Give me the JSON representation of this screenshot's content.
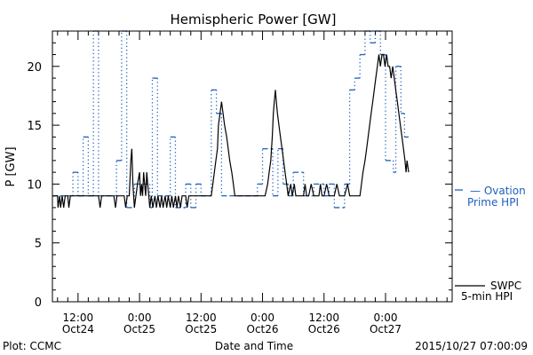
{
  "chart_data": {
    "type": "line",
    "title": "Hemispheric Power [GW]",
    "xlabel": "Date and Time",
    "ylabel": "P [GW]",
    "x_unit": "hours after 2015-10-24 00:00 UT",
    "xlim": [
      7.0,
      85.0
    ],
    "ylim": [
      0,
      23
    ],
    "yticks": [
      0,
      5,
      10,
      15,
      20
    ],
    "xticks": [
      {
        "t": 12,
        "time": "12:00",
        "date": "Oct24"
      },
      {
        "t": 24,
        "time": "0:00",
        "date": "Oct25"
      },
      {
        "t": 36,
        "time": "12:00",
        "date": "Oct25"
      },
      {
        "t": 48,
        "time": "0:00",
        "date": "Oct26"
      },
      {
        "t": 60,
        "time": "12:00",
        "date": "Oct26"
      },
      {
        "t": 72,
        "time": "0:00",
        "date": "Oct27"
      }
    ],
    "grid": false,
    "legend_position": "right",
    "footer_left": "Plot: CCMC",
    "footer_right": "2015/10/27 07:00:09",
    "series": [
      {
        "name": "SWPC 5-min HPI",
        "legend_lines": [
          "SWPC",
          "5-min HPI"
        ],
        "color": "#000000",
        "style": "solid-step",
        "points": [
          [
            7.0,
            9
          ],
          [
            8.0,
            9
          ],
          [
            8.1,
            8
          ],
          [
            8.4,
            9
          ],
          [
            8.6,
            8
          ],
          [
            8.9,
            9
          ],
          [
            9.2,
            8
          ],
          [
            9.5,
            9
          ],
          [
            10.0,
            9
          ],
          [
            10.2,
            8
          ],
          [
            10.5,
            9
          ],
          [
            16.0,
            9
          ],
          [
            16.3,
            8
          ],
          [
            16.6,
            9
          ],
          [
            19.0,
            9
          ],
          [
            19.3,
            8
          ],
          [
            19.6,
            9
          ],
          [
            21.0,
            9
          ],
          [
            21.3,
            8
          ],
          [
            21.6,
            9
          ],
          [
            22.0,
            9
          ],
          [
            22.3,
            12
          ],
          [
            22.5,
            13
          ],
          [
            22.7,
            10
          ],
          [
            23.0,
            8
          ],
          [
            23.3,
            9
          ],
          [
            23.6,
            10
          ],
          [
            24.0,
            11
          ],
          [
            24.2,
            9
          ],
          [
            24.4,
            10
          ],
          [
            24.6,
            9
          ],
          [
            24.8,
            11
          ],
          [
            25.0,
            10
          ],
          [
            25.2,
            9
          ],
          [
            25.4,
            11
          ],
          [
            25.6,
            10
          ],
          [
            25.8,
            9
          ],
          [
            26.0,
            8
          ],
          [
            26.3,
            9
          ],
          [
            26.6,
            8
          ],
          [
            27.0,
            9
          ],
          [
            27.3,
            8
          ],
          [
            27.6,
            9
          ],
          [
            28.0,
            8
          ],
          [
            28.3,
            9
          ],
          [
            28.6,
            8
          ],
          [
            29.0,
            9
          ],
          [
            29.3,
            8
          ],
          [
            29.6,
            9
          ],
          [
            30.0,
            8
          ],
          [
            30.3,
            9
          ],
          [
            30.6,
            8
          ],
          [
            31.0,
            9
          ],
          [
            31.3,
            8
          ],
          [
            31.6,
            9
          ],
          [
            32.0,
            8
          ],
          [
            32.3,
            9
          ],
          [
            33.0,
            9
          ],
          [
            33.3,
            8
          ],
          [
            33.6,
            9
          ],
          [
            35.0,
            9
          ],
          [
            36.5,
            9
          ],
          [
            38.0,
            9
          ],
          [
            38.3,
            10
          ],
          [
            38.6,
            11
          ],
          [
            38.9,
            12
          ],
          [
            39.2,
            13
          ],
          [
            39.4,
            15
          ],
          [
            39.7,
            16
          ],
          [
            40.0,
            17
          ],
          [
            40.3,
            16
          ],
          [
            40.6,
            15
          ],
          [
            41.0,
            14
          ],
          [
            41.3,
            13
          ],
          [
            41.6,
            12
          ],
          [
            42.0,
            11
          ],
          [
            42.3,
            10
          ],
          [
            42.6,
            9
          ],
          [
            48.5,
            9
          ],
          [
            49.0,
            10
          ],
          [
            49.3,
            11
          ],
          [
            49.6,
            12
          ],
          [
            49.9,
            14
          ],
          [
            50.1,
            16
          ],
          [
            50.3,
            17
          ],
          [
            50.5,
            18
          ],
          [
            50.7,
            17
          ],
          [
            50.9,
            16
          ],
          [
            51.2,
            15
          ],
          [
            51.5,
            14
          ],
          [
            51.8,
            13
          ],
          [
            52.1,
            12
          ],
          [
            52.4,
            11
          ],
          [
            52.7,
            10
          ],
          [
            53.0,
            9
          ],
          [
            53.5,
            10
          ],
          [
            53.8,
            9
          ],
          [
            54.2,
            10
          ],
          [
            54.5,
            9
          ],
          [
            55.0,
            9
          ],
          [
            56.0,
            9
          ],
          [
            56.3,
            10
          ],
          [
            56.6,
            9
          ],
          [
            57.0,
            9
          ],
          [
            57.5,
            10
          ],
          [
            58.0,
            9
          ],
          [
            59.0,
            9
          ],
          [
            59.3,
            10
          ],
          [
            59.6,
            9
          ],
          [
            60.0,
            9
          ],
          [
            60.5,
            10
          ],
          [
            61.0,
            9
          ],
          [
            62.0,
            9
          ],
          [
            62.5,
            10
          ],
          [
            63.0,
            9
          ],
          [
            64.0,
            9
          ],
          [
            64.6,
            10
          ],
          [
            65.0,
            9
          ],
          [
            67.0,
            9
          ],
          [
            67.3,
            10
          ],
          [
            67.6,
            11
          ],
          [
            68.0,
            12
          ],
          [
            68.3,
            13
          ],
          [
            68.6,
            14
          ],
          [
            68.9,
            15
          ],
          [
            69.2,
            16
          ],
          [
            69.5,
            17
          ],
          [
            69.8,
            18
          ],
          [
            70.1,
            19
          ],
          [
            70.4,
            20
          ],
          [
            70.7,
            21
          ],
          [
            71.0,
            20
          ],
          [
            71.3,
            21
          ],
          [
            71.6,
            21
          ],
          [
            71.9,
            20
          ],
          [
            72.2,
            21
          ],
          [
            72.5,
            20
          ],
          [
            72.8,
            20
          ],
          [
            73.1,
            19
          ],
          [
            73.4,
            20
          ],
          [
            73.7,
            19
          ],
          [
            74.0,
            18
          ],
          [
            74.3,
            17
          ],
          [
            74.6,
            16
          ],
          [
            74.9,
            15
          ],
          [
            75.2,
            14
          ],
          [
            75.5,
            13
          ],
          [
            75.8,
            12
          ],
          [
            76.0,
            11
          ],
          [
            76.2,
            12
          ],
          [
            76.5,
            11
          ]
        ]
      },
      {
        "name": "Ovation Prime HPI",
        "legend_lines": [
          "— Ovation",
          "Prime HPI"
        ],
        "color": "#1f5fbf",
        "style": "dotted-dashed-step",
        "points": [
          [
            7.0,
            9
          ],
          [
            11.0,
            9
          ],
          [
            11.0,
            11
          ],
          [
            12.0,
            11
          ],
          [
            12.0,
            9
          ],
          [
            13.0,
            9
          ],
          [
            13.0,
            14
          ],
          [
            14.0,
            14
          ],
          [
            14.0,
            9
          ],
          [
            15.0,
            9
          ],
          [
            15.0,
            23
          ],
          [
            16.0,
            23
          ],
          [
            16.0,
            9
          ],
          [
            19.5,
            9
          ],
          [
            19.5,
            12
          ],
          [
            20.5,
            12
          ],
          [
            20.5,
            23
          ],
          [
            21.5,
            23
          ],
          [
            21.5,
            8
          ],
          [
            23.0,
            8
          ],
          [
            23.0,
            10
          ],
          [
            26.0,
            10
          ],
          [
            26.0,
            8
          ],
          [
            26.5,
            8
          ],
          [
            26.5,
            19
          ],
          [
            27.5,
            19
          ],
          [
            27.5,
            9
          ],
          [
            30.0,
            9
          ],
          [
            30.0,
            14
          ],
          [
            31.0,
            14
          ],
          [
            31.0,
            8
          ],
          [
            33.0,
            8
          ],
          [
            33.0,
            10
          ],
          [
            34.0,
            10
          ],
          [
            34.0,
            8
          ],
          [
            35.0,
            8
          ],
          [
            35.0,
            10
          ],
          [
            36.0,
            10
          ],
          [
            36.0,
            9
          ],
          [
            38.0,
            9
          ],
          [
            38.0,
            18
          ],
          [
            39.0,
            18
          ],
          [
            39.0,
            16
          ],
          [
            40.0,
            16
          ],
          [
            40.0,
            9
          ],
          [
            47.0,
            9
          ],
          [
            47.0,
            10
          ],
          [
            48.0,
            10
          ],
          [
            48.0,
            13
          ],
          [
            50.0,
            13
          ],
          [
            50.0,
            9
          ],
          [
            51.0,
            9
          ],
          [
            51.0,
            13
          ],
          [
            52.0,
            13
          ],
          [
            52.0,
            10
          ],
          [
            53.0,
            10
          ],
          [
            53.0,
            9
          ],
          [
            54.0,
            9
          ],
          [
            54.0,
            11
          ],
          [
            56.0,
            11
          ],
          [
            56.0,
            9
          ],
          [
            58.0,
            9
          ],
          [
            58.0,
            10
          ],
          [
            60.0,
            10
          ],
          [
            60.0,
            9
          ],
          [
            61.0,
            9
          ],
          [
            61.0,
            10
          ],
          [
            62.0,
            10
          ],
          [
            62.0,
            8
          ],
          [
            64.0,
            8
          ],
          [
            64.0,
            10
          ],
          [
            65.0,
            10
          ],
          [
            65.0,
            18
          ],
          [
            66.0,
            18
          ],
          [
            66.0,
            19
          ],
          [
            67.0,
            19
          ],
          [
            67.0,
            21
          ],
          [
            68.0,
            21
          ],
          [
            68.0,
            23
          ],
          [
            69.0,
            23
          ],
          [
            69.0,
            22
          ],
          [
            70.0,
            22
          ],
          [
            70.0,
            23
          ],
          [
            71.0,
            23
          ],
          [
            71.0,
            21
          ],
          [
            72.0,
            21
          ],
          [
            72.0,
            12
          ],
          [
            73.5,
            12
          ],
          [
            73.5,
            11
          ],
          [
            74.0,
            11
          ],
          [
            74.0,
            20
          ],
          [
            75.0,
            20
          ],
          [
            75.0,
            16
          ],
          [
            75.7,
            16
          ],
          [
            75.7,
            14
          ],
          [
            76.5,
            14
          ]
        ]
      }
    ]
  }
}
